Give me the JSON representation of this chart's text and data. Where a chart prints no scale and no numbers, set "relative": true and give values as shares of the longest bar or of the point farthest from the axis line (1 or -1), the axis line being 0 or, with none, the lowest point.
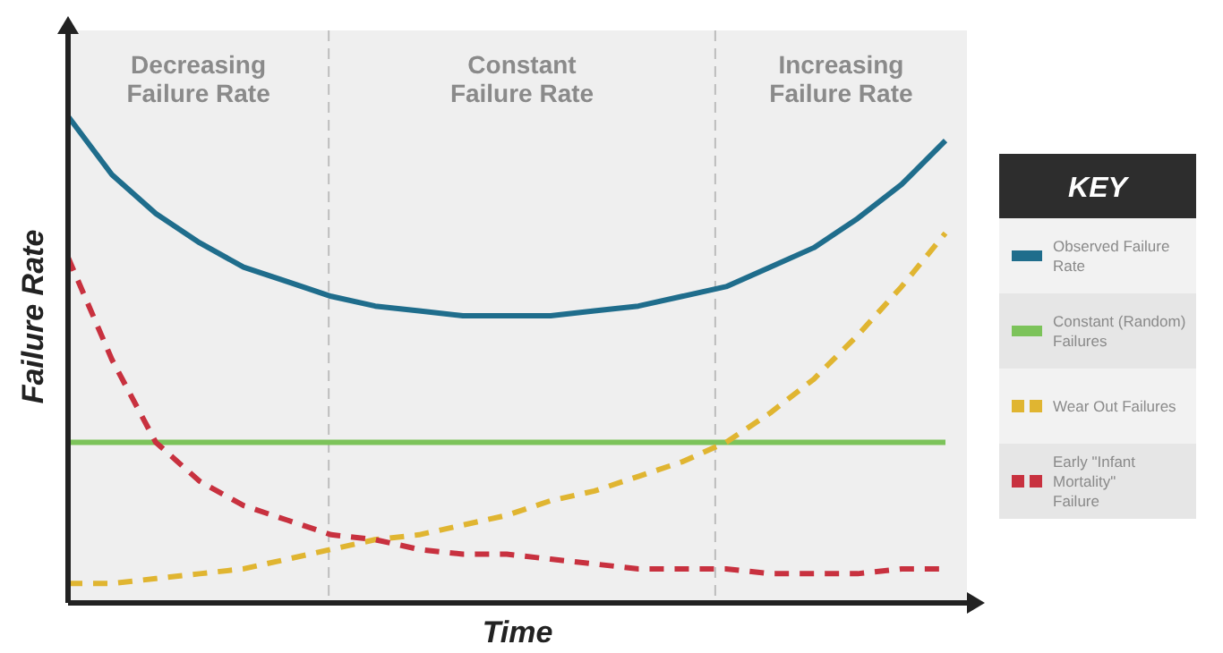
{
  "chart_data": {
    "type": "line",
    "relative": true,
    "xlabel": "Time",
    "ylabel": "Failure Rate",
    "legend_title": "KEY",
    "legend": "right",
    "categories": [
      null,
      null,
      null,
      null,
      null,
      null,
      null,
      null,
      null,
      null,
      null,
      null,
      null,
      null,
      null,
      null,
      null,
      null,
      null,
      null,
      null
    ],
    "annotations": [
      "Decreasing Failure Rate",
      "Constant Failure Rate",
      "Increasing Failure Rate"
    ],
    "series": [
      {
        "name": "Observed Failure Rate",
        "color": "#1f6d8c",
        "line_style": "solid",
        "values": [
          1,
          0.88,
          0.8,
          0.74,
          0.69,
          0.66,
          0.63,
          0.61,
          0.6,
          0.59,
          0.59,
          0.59,
          0.6,
          0.61,
          0.63,
          0.65,
          0.69,
          0.73,
          0.79,
          0.86,
          0.95
        ]
      },
      {
        "name": "Constant (Random) Failures",
        "color": "#7cc35a",
        "line_style": "solid",
        "values": [
          0.33,
          0.33,
          0.33,
          0.33,
          0.33,
          0.33,
          0.33,
          0.33,
          0.33,
          0.33,
          0.33,
          0.33,
          0.33,
          0.33,
          0.33,
          0.33,
          0.33,
          0.33,
          0.33,
          0.33,
          0.33
        ]
      },
      {
        "name": "Wear Out Failures",
        "color": "#e0b531",
        "line_style": "dashed",
        "values": [
          0.04,
          0.04,
          0.05,
          0.06,
          0.07,
          0.09,
          0.11,
          0.13,
          0.14,
          0.16,
          0.18,
          0.21,
          0.23,
          0.26,
          0.29,
          0.33,
          0.39,
          0.46,
          0.55,
          0.65,
          0.76
        ]
      },
      {
        "name": "Early \"Infant Mortality\" Failure",
        "color": "#c8313f",
        "line_style": "dashed",
        "values": [
          0.71,
          0.5,
          0.33,
          0.25,
          0.2,
          0.17,
          0.14,
          0.13,
          0.11,
          0.1,
          0.1,
          0.09,
          0.08,
          0.07,
          0.07,
          0.07,
          0.06,
          0.06,
          0.06,
          0.07,
          0.07
        ]
      }
    ]
  }
}
